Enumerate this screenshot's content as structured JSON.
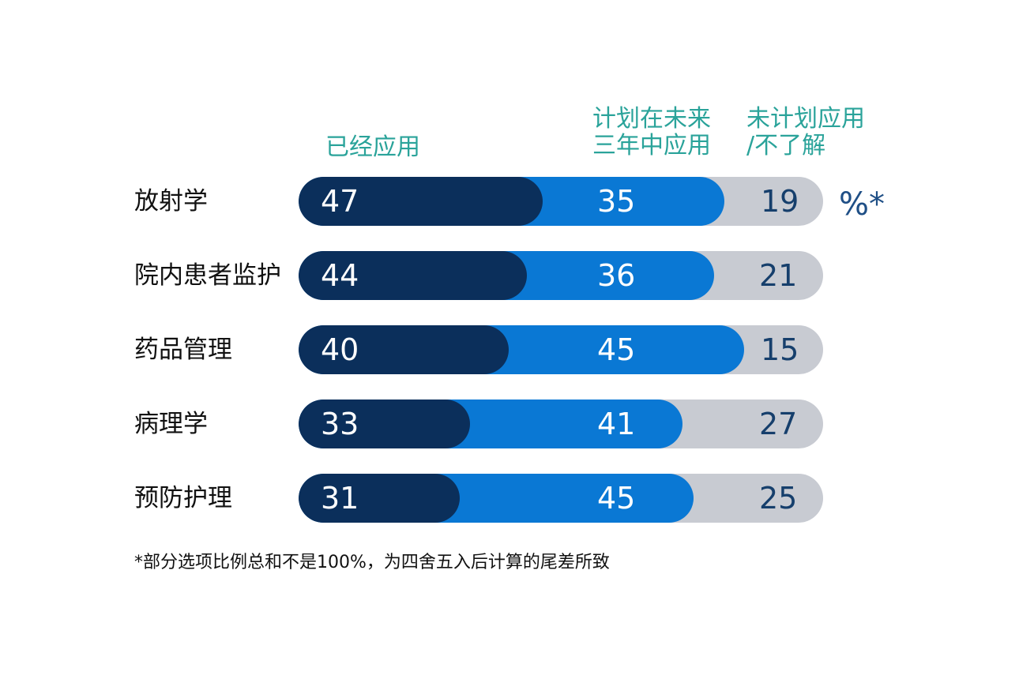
{
  "legend": {
    "applied": "已经应用",
    "planned": "计划在未来\n三年中应用",
    "not_planned": "未计划应用\n/不了解"
  },
  "unit_label": "%*",
  "footnote": "*部分选项比例总和不是100%，为四舍五入后计算的尾差所致",
  "colors": {
    "applied": "#0b2f5b",
    "planned": "#0a78d4",
    "not_planned": "#c8cbd2",
    "legend_text": "#2aa39a"
  },
  "chart_data": {
    "type": "bar",
    "stacked": true,
    "orientation": "horizontal",
    "unit": "%",
    "categories": [
      "放射学",
      "院内患者监护",
      "药品管理",
      "病理学",
      "预防护理"
    ],
    "series": [
      {
        "name": "已经应用",
        "values": [
          47,
          44,
          40,
          33,
          31
        ]
      },
      {
        "name": "计划在未来三年中应用",
        "values": [
          35,
          36,
          45,
          41,
          45
        ]
      },
      {
        "name": "未计划应用/不了解",
        "values": [
          19,
          21,
          15,
          27,
          25
        ]
      }
    ]
  }
}
